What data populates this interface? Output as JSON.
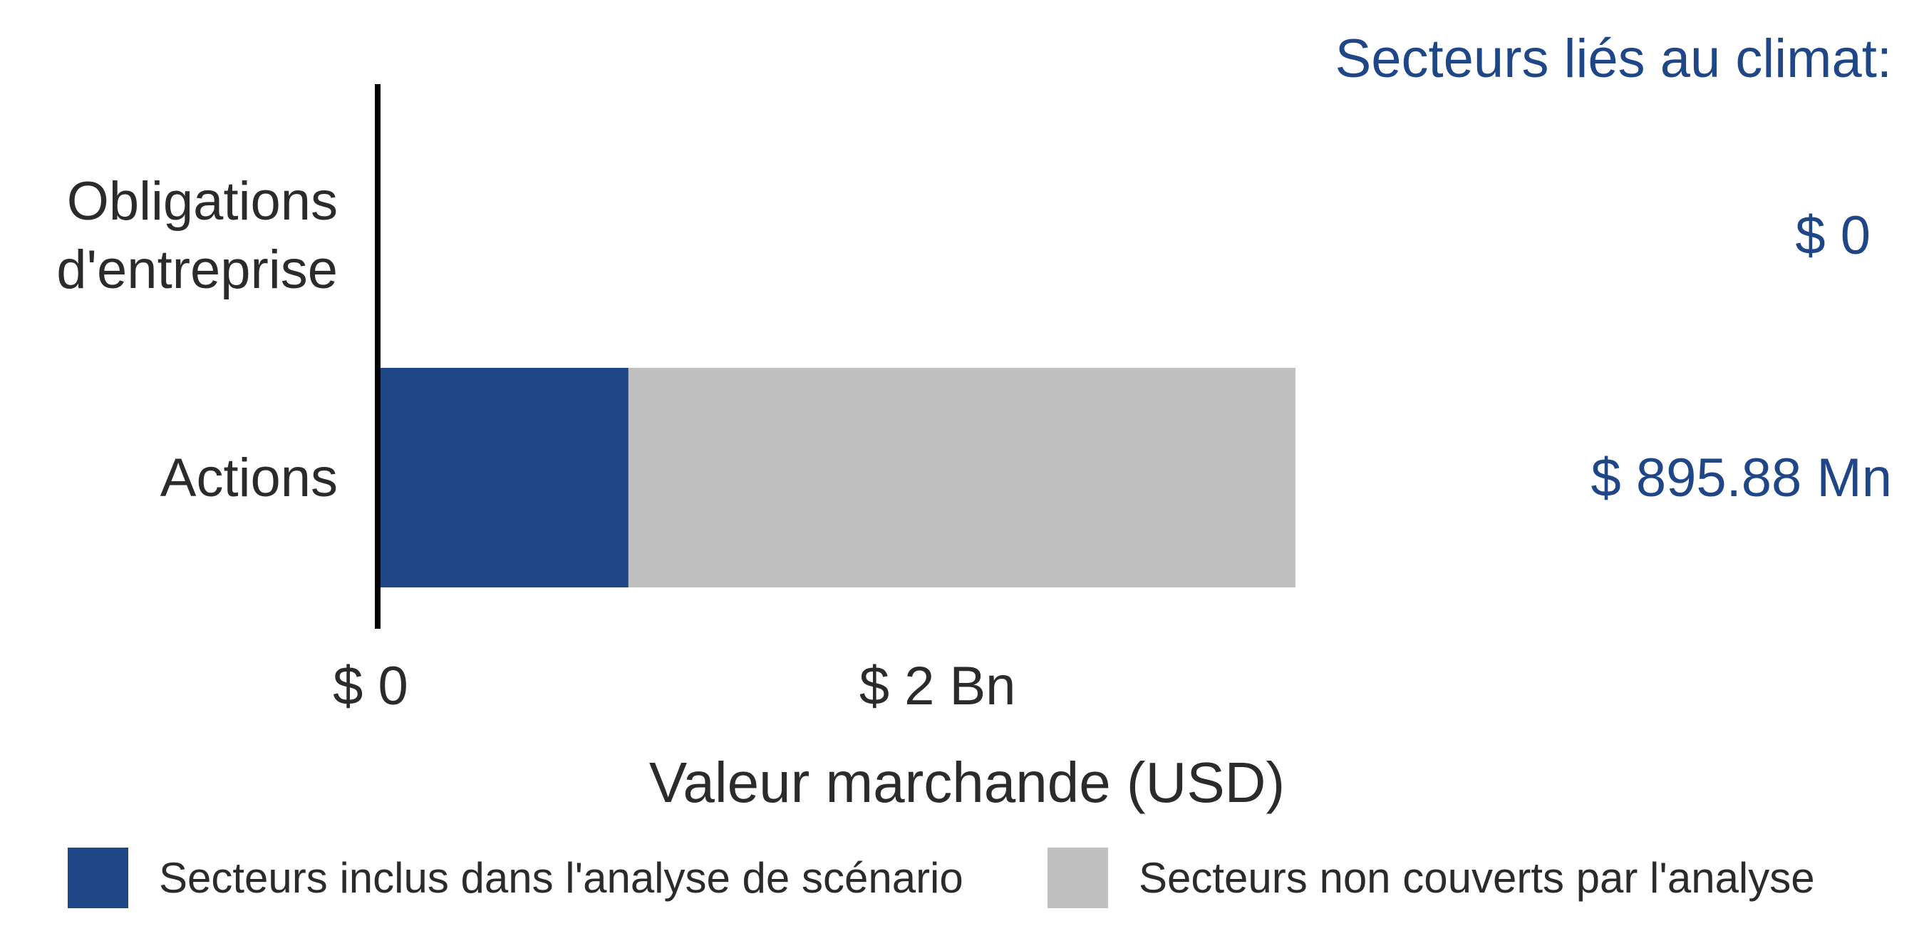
{
  "chart_data": {
    "type": "bar",
    "orientation": "horizontal",
    "stacked": true,
    "categories": [
      "Obligations\nd'entreprise",
      "Actions"
    ],
    "series": [
      {
        "name": "Secteurs inclus dans l'analyse de scénario",
        "values": [
          0,
          895.88
        ],
        "color": "#1f4788"
      },
      {
        "name": "Secteurs non couverts par l'analyse",
        "values": [
          0,
          2383
        ],
        "color": "#c0c0c0"
      }
    ],
    "xlabel": "Valeur marchande (USD)",
    "ylabel": "",
    "xlim": [
      0,
      4000
    ],
    "xticks": [
      {
        "value": 0,
        "label": "$ 0"
      },
      {
        "value": 2000,
        "label": "$ 2 Bn"
      }
    ],
    "side_panel": {
      "title": "Secteurs liés au climat:",
      "values": [
        "$ 0",
        "$ 895.88 Mn"
      ]
    },
    "legend_position": "bottom",
    "grid": false
  }
}
